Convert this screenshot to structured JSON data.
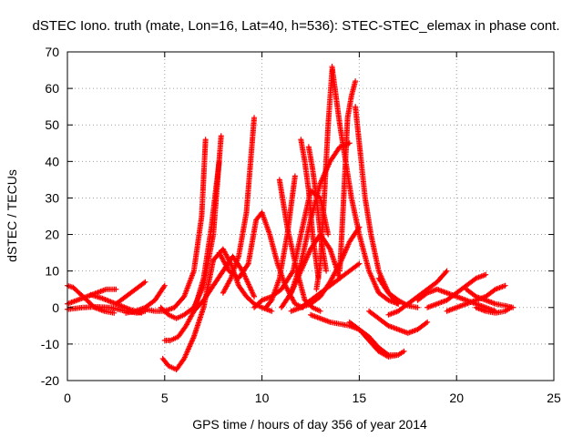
{
  "chart_data": {
    "type": "scatter",
    "title": "dSTEC Iono. truth (mate, Lon=16, Lat=40, h=536): STEC-STEC_elemax in phase cont.",
    "xlabel": "GPS time / hours of day 356 of year 2014",
    "ylabel": "dSTEC  / TECUs",
    "xlim": [
      0,
      25
    ],
    "ylim": [
      -20,
      70
    ],
    "xticks": [
      0,
      5,
      10,
      15,
      20,
      25
    ],
    "yticks": [
      -20,
      -10,
      0,
      10,
      20,
      30,
      40,
      50,
      60,
      70
    ],
    "grid": true,
    "legend": "none",
    "marker": "plus",
    "color": "#ff0000",
    "series": [
      {
        "x": [
          0.0,
          0.5,
          1.0,
          1.5,
          2.0,
          2.5
        ],
        "y": [
          1.0,
          2.0,
          3.0,
          4.0,
          5.0,
          5.0
        ]
      },
      {
        "x": [
          0.0,
          0.3,
          0.6,
          1.0,
          1.4,
          1.9,
          2.4
        ],
        "y": [
          6.0,
          5.5,
          4.0,
          2.0,
          0.0,
          -1.0,
          -1.5
        ]
      },
      {
        "x": [
          0.0,
          0.8,
          1.5,
          2.2,
          3.0,
          3.6,
          4.0
        ],
        "y": [
          -0.5,
          0.0,
          0.2,
          0.0,
          -1.0,
          -1.5,
          -1.0
        ]
      },
      {
        "x": [
          1.2,
          1.8,
          2.5,
          3.2,
          3.8
        ],
        "y": [
          3.5,
          2.5,
          1.0,
          -0.5,
          -1.5
        ]
      },
      {
        "x": [
          2.5,
          3.0,
          3.5,
          4.0
        ],
        "y": [
          1.0,
          3.0,
          5.0,
          7.0
        ]
      },
      {
        "x": [
          3.0,
          3.5,
          4.0,
          4.5,
          5.0
        ],
        "y": [
          -1.5,
          -1.0,
          0.0,
          2.0,
          6.0
        ]
      },
      {
        "x": [
          4.0,
          4.5,
          5.0,
          5.5,
          6.0,
          6.5,
          6.9,
          7.1
        ],
        "y": [
          -0.5,
          -1.0,
          -1.0,
          0.0,
          3.0,
          10.0,
          25.0,
          46.0
        ]
      },
      {
        "x": [
          4.8,
          5.2,
          5.6,
          6.0,
          6.5,
          7.0,
          7.5,
          7.9
        ],
        "y": [
          0.0,
          -2.0,
          -3.0,
          -2.0,
          0.0,
          6.0,
          20.0,
          47.0
        ]
      },
      {
        "x": [
          5.0,
          5.3,
          5.7,
          6.1,
          6.5,
          7.0,
          7.4,
          7.8
        ],
        "y": [
          -9.0,
          -9.0,
          -8.0,
          -5.0,
          -1.0,
          8.0,
          22.0,
          40.0
        ]
      },
      {
        "x": [
          4.9,
          5.2,
          5.6,
          6.0,
          6.5,
          7.0,
          7.5
        ],
        "y": [
          -14.0,
          -16.0,
          -17.0,
          -14.0,
          -8.0,
          0.0,
          13.0
        ]
      },
      {
        "x": [
          6.5,
          7.0,
          7.5,
          8.0,
          8.5,
          9.0,
          9.6
        ],
        "y": [
          -1.0,
          2.0,
          6.0,
          10.0,
          14.0,
          10.0,
          3.0
        ]
      },
      {
        "x": [
          7.5,
          8.0,
          8.4,
          8.8,
          9.2,
          9.6,
          10.0,
          10.5
        ],
        "y": [
          13.0,
          16.0,
          12.0,
          6.0,
          3.0,
          1.0,
          0.0,
          -1.0
        ]
      },
      {
        "x": [
          7.8,
          8.3,
          8.8,
          9.3,
          9.7,
          10.0
        ],
        "y": [
          15.0,
          10.0,
          8.0,
          12.0,
          24.0,
          26.0
        ]
      },
      {
        "x": [
          8.0,
          8.4,
          8.8,
          9.2,
          9.6
        ],
        "y": [
          4.0,
          8.0,
          14.0,
          26.0,
          52.0
        ]
      },
      {
        "x": [
          9.6,
          10.0,
          10.5,
          11.0,
          11.6,
          12.0,
          12.5,
          13.0,
          13.4
        ],
        "y": [
          0.0,
          2.0,
          3.0,
          5.0,
          10.0,
          20.0,
          32.0,
          30.0,
          20.0
        ]
      },
      {
        "x": [
          10.0,
          10.4,
          10.8,
          11.2,
          11.7,
          12.1
        ],
        "y": [
          26.0,
          20.0,
          12.0,
          6.0,
          1.0,
          0.0
        ]
      },
      {
        "x": [
          10.2,
          10.5,
          10.9,
          11.3,
          11.7
        ],
        "y": [
          0.0,
          2.0,
          8.0,
          20.0,
          36.0
        ]
      },
      {
        "x": [
          10.9,
          11.3,
          11.8,
          12.2,
          12.6,
          13.0
        ],
        "y": [
          35.0,
          22.0,
          10.0,
          2.0,
          0.0,
          -1.0
        ]
      },
      {
        "x": [
          11.0,
          11.5,
          12.0,
          12.5,
          13.0,
          13.5,
          14.0,
          14.5
        ],
        "y": [
          0.0,
          4.0,
          12.0,
          24.0,
          34.0,
          40.0,
          44.0,
          45.0
        ]
      },
      {
        "x": [
          11.5,
          12.0,
          12.5,
          13.0,
          13.5,
          14.0
        ],
        "y": [
          4.0,
          10.0,
          16.0,
          20.0,
          16.0,
          8.0
        ]
      },
      {
        "x": [
          12.0,
          12.2,
          12.4,
          12.6,
          12.9
        ],
        "y": [
          46.0,
          40.0,
          32.0,
          20.0,
          8.0
        ]
      },
      {
        "x": [
          12.4,
          12.6,
          12.8,
          13.0,
          13.3
        ],
        "y": [
          44.0,
          38.0,
          30.0,
          20.0,
          10.0
        ]
      },
      {
        "x": [
          12.8,
          13.0,
          13.2,
          13.4,
          13.6
        ],
        "y": [
          5.0,
          12.0,
          30.0,
          50.0,
          65.0
        ]
      },
      {
        "x": [
          13.6,
          13.8,
          14.0,
          14.3,
          14.6,
          15.0,
          15.5,
          16.0,
          16.5,
          17.0
        ],
        "y": [
          66.0,
          58.0,
          50.0,
          40.0,
          30.0,
          20.0,
          10.0,
          4.0,
          2.0,
          1.0
        ]
      },
      {
        "x": [
          14.0,
          14.2,
          14.4,
          14.6,
          14.8
        ],
        "y": [
          10.0,
          30.0,
          52.0,
          58.0,
          62.0
        ]
      },
      {
        "x": [
          14.8,
          15.0,
          15.3,
          15.6,
          16.0,
          16.5,
          17.0
        ],
        "y": [
          55.0,
          45.0,
          30.0,
          20.0,
          10.0,
          4.0,
          1.0
        ]
      },
      {
        "x": [
          12.5,
          13.0,
          13.5,
          14.0,
          14.5,
          15.0,
          15.5,
          16.0,
          16.5,
          17.0
        ],
        "y": [
          -2.0,
          -3.0,
          -4.0,
          -4.5,
          -5.0,
          -6.0,
          -8.0,
          -11.0,
          -13.0,
          -13.0
        ]
      },
      {
        "x": [
          14.5,
          15.0,
          15.5,
          16.0,
          16.5,
          17.0,
          17.3
        ],
        "y": [
          -4.0,
          -6.0,
          -9.0,
          -12.0,
          -13.5,
          -13.0,
          -12.0
        ]
      },
      {
        "x": [
          11.5,
          12.0,
          12.5,
          13.0,
          13.5,
          14.0,
          14.5,
          15.0
        ],
        "y": [
          -1.0,
          0.0,
          2.0,
          4.0,
          6.0,
          8.0,
          10.0,
          12.0
        ]
      },
      {
        "x": [
          12.0,
          12.5,
          13.0,
          13.5,
          14.0,
          14.5,
          15.0
        ],
        "y": [
          0.0,
          1.0,
          3.0,
          7.0,
          12.0,
          18.0,
          22.0
        ]
      },
      {
        "x": [
          15.5,
          16.0,
          16.5,
          17.0,
          17.5,
          18.0,
          18.5
        ],
        "y": [
          -1.0,
          -3.0,
          -5.0,
          -6.0,
          -7.0,
          -6.0,
          -4.0
        ]
      },
      {
        "x": [
          16.5,
          17.0,
          17.5,
          18.0,
          18.5,
          19.0,
          19.5
        ],
        "y": [
          -2.0,
          -1.0,
          1.0,
          3.0,
          5.0,
          7.0,
          10.0
        ]
      },
      {
        "x": [
          16.0,
          16.5,
          17.0,
          17.5,
          18.0
        ],
        "y": [
          8.0,
          4.0,
          2.0,
          0.5,
          0.0
        ]
      },
      {
        "x": [
          18.0,
          18.5,
          19.0,
          19.5,
          20.0,
          20.5,
          21.0,
          21.5,
          22.0
        ],
        "y": [
          2.0,
          4.0,
          5.0,
          4.0,
          3.0,
          2.0,
          1.0,
          0.0,
          -1.0
        ]
      },
      {
        "x": [
          18.5,
          19.0,
          19.5,
          20.0,
          20.5,
          21.0,
          21.5
        ],
        "y": [
          0.0,
          1.0,
          2.0,
          4.0,
          6.0,
          8.0,
          9.0
        ]
      },
      {
        "x": [
          19.5,
          20.0,
          20.5,
          21.0,
          21.5,
          22.0,
          22.5
        ],
        "y": [
          -1.0,
          0.0,
          1.0,
          2.0,
          3.0,
          5.0,
          6.0
        ]
      },
      {
        "x": [
          20.5,
          21.0,
          21.5,
          22.0,
          22.5,
          22.9
        ],
        "y": [
          5.0,
          3.0,
          2.0,
          1.0,
          0.5,
          0.0
        ]
      },
      {
        "x": [
          21.0,
          21.5,
          22.0,
          22.5,
          22.8
        ],
        "y": [
          0.0,
          -1.0,
          -1.5,
          -1.0,
          0.0
        ]
      }
    ]
  }
}
